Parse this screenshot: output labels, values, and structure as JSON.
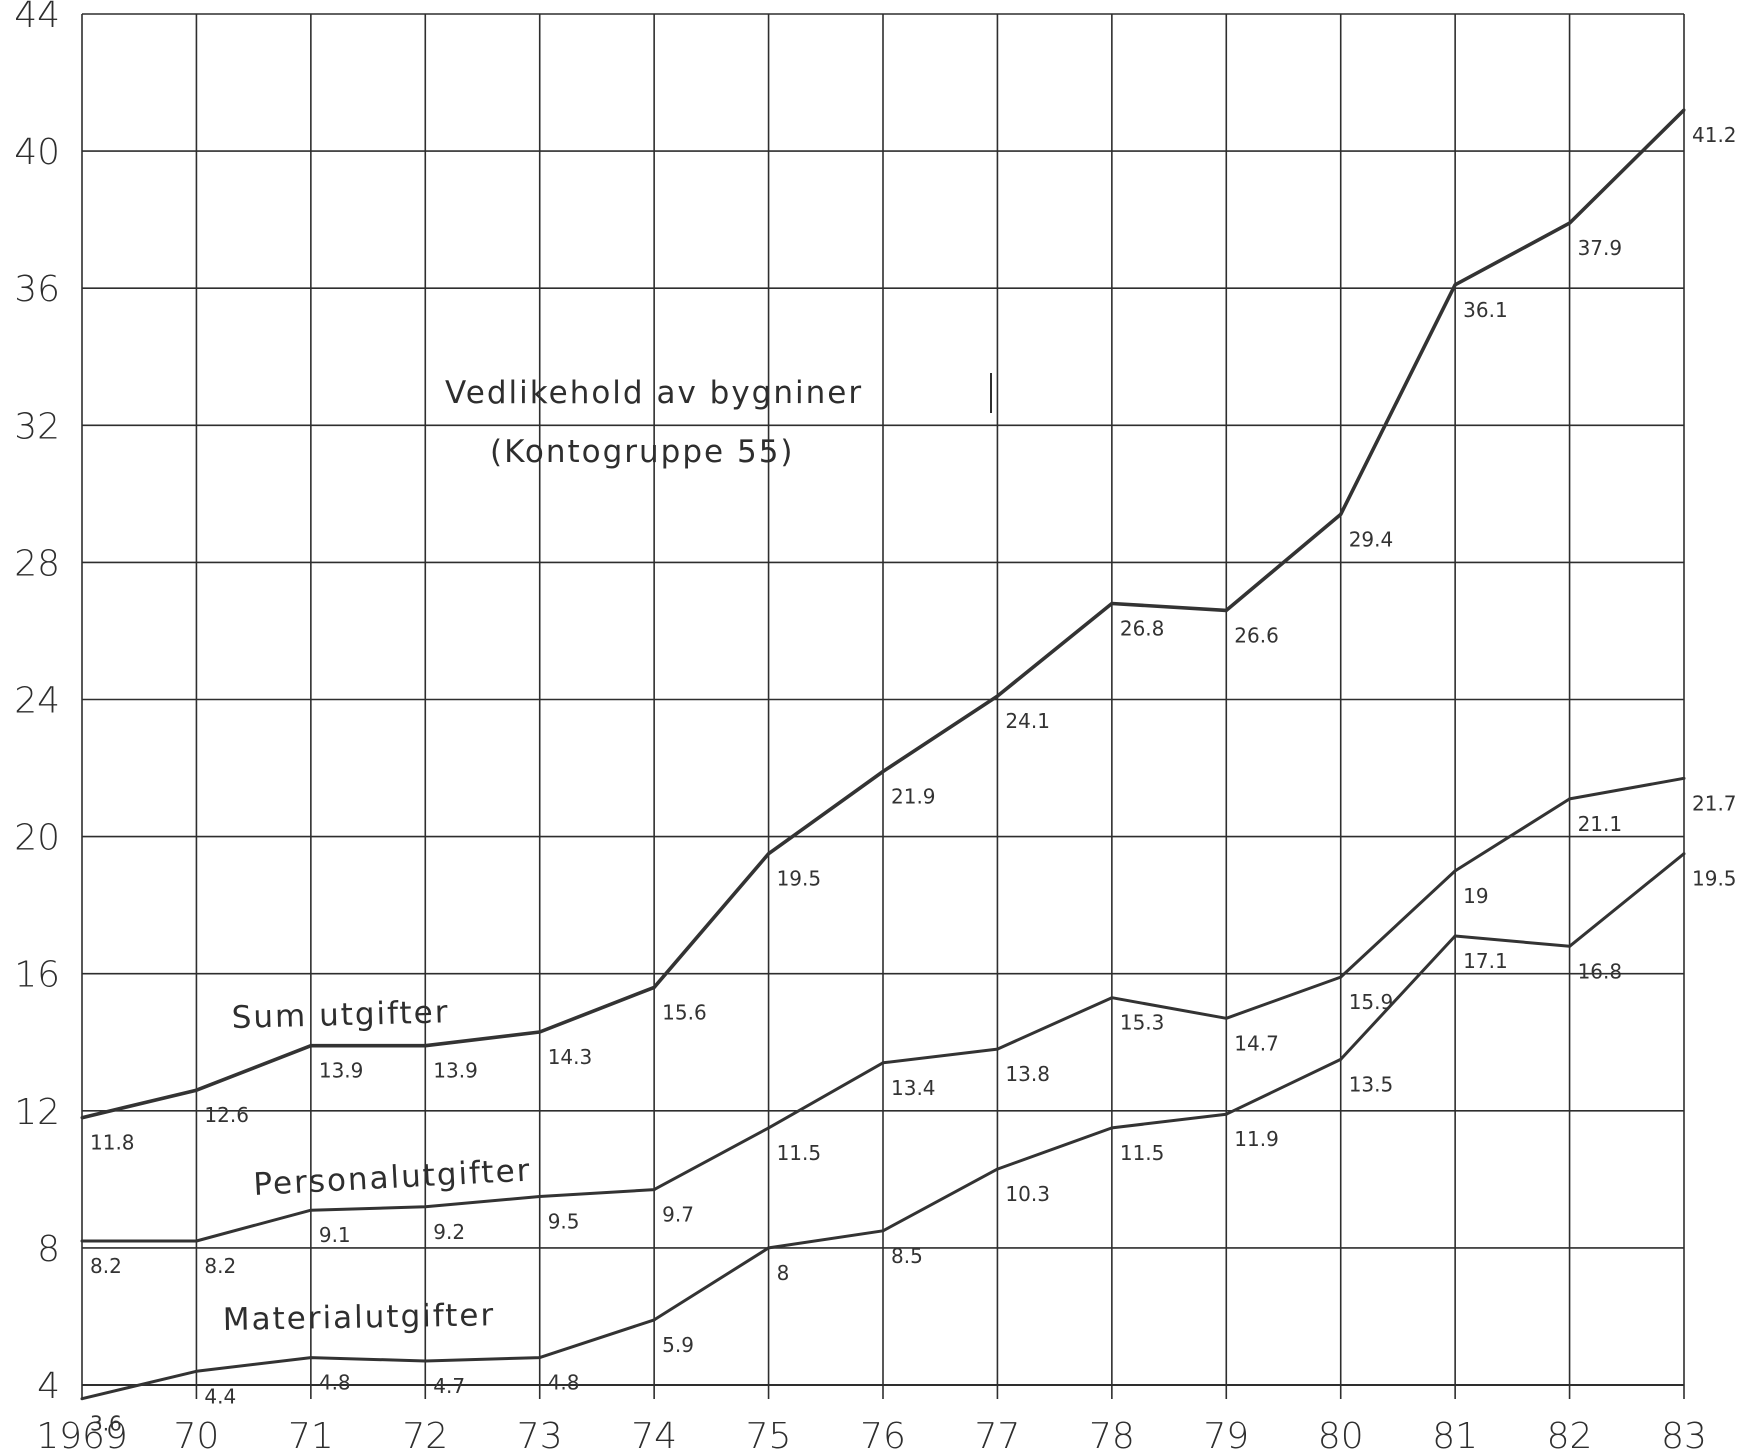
{
  "chart_data": {
    "type": "line",
    "title": "Vedlikehold av bygniner",
    "subtitle": "(Kontogruppe 55)",
    "xlabel": "",
    "ylabel": "",
    "categories": [
      "1969",
      "70",
      "71",
      "72",
      "73",
      "74",
      "75",
      "76",
      "77",
      "78",
      "79",
      "80",
      "81",
      "82",
      "83"
    ],
    "ylim": [
      4,
      44
    ],
    "yticks": [
      4,
      8,
      12,
      16,
      20,
      24,
      28,
      32,
      36,
      40,
      44
    ],
    "ytick_labels": [
      "4",
      "8",
      "12",
      "16",
      "20",
      "24",
      "28",
      "32",
      "36",
      "40",
      "44"
    ],
    "grid": true,
    "series": [
      {
        "name": "Sum utgifter",
        "values": [
          11.8,
          12.6,
          13.9,
          13.9,
          14.3,
          15.6,
          19.5,
          21.9,
          24.1,
          26.8,
          26.6,
          29.4,
          36.1,
          37.9,
          41.2
        ],
        "labels": [
          "11.8",
          "12.6",
          "13.9",
          "13.9",
          "14.3",
          "15.6",
          "19.5",
          "21.9",
          "24.1",
          "26.8",
          "26.6",
          "29.4",
          "36.1",
          "37.9",
          "41.2"
        ]
      },
      {
        "name": "Personalutgifter",
        "values": [
          8.2,
          8.2,
          9.1,
          9.2,
          9.5,
          9.7,
          11.5,
          13.4,
          13.8,
          15.3,
          14.7,
          15.9,
          19,
          21.1,
          21.7
        ],
        "labels": [
          "8.2",
          "8.2",
          "9.1",
          "9.2",
          "9.5",
          "9.7",
          "11.5",
          "13.4",
          "13.8",
          "15.3",
          "14.7",
          "15.9",
          "19",
          "21.1",
          "21.7"
        ]
      },
      {
        "name": "Materialutgifter",
        "values": [
          3.6,
          4.4,
          4.8,
          4.7,
          4.8,
          5.9,
          8,
          8.5,
          10.3,
          11.5,
          11.9,
          13.5,
          17.1,
          16.8,
          19.5
        ],
        "labels": [
          "3.6",
          "4.4",
          "4.8",
          "4.7",
          "4.8",
          "5.9",
          "8",
          "8.5",
          "10.3",
          "11.5",
          "11.9",
          "13.5",
          "17.1",
          "16.8",
          "19.5"
        ]
      }
    ]
  }
}
